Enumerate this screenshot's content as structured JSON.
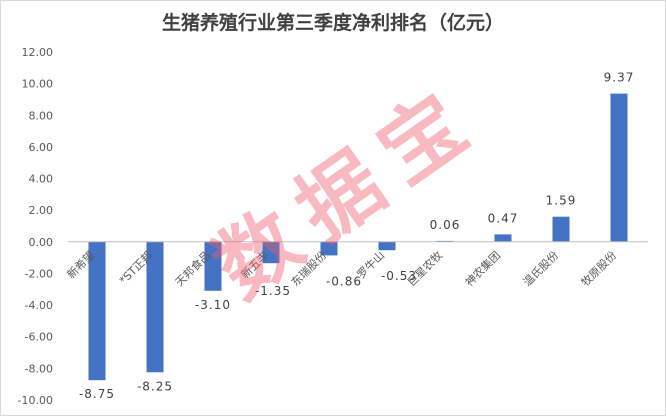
{
  "chart_data": {
    "type": "bar",
    "title": "生猪养殖行业第三季度净利排名（亿元）",
    "categories": [
      "新希望",
      "*ST正邦",
      "天邦食品",
      "新五丰",
      "东瑞股份",
      "罗牛山",
      "巨星农牧",
      "神农集团",
      "温氏股份",
      "牧原股份"
    ],
    "values": [
      -8.75,
      -8.25,
      -3.1,
      -1.35,
      -0.86,
      -0.53,
      0.06,
      0.47,
      1.59,
      9.37
    ],
    "ylim": [
      -10,
      12
    ],
    "y_ticks": [
      "12.00",
      "10.00",
      "8.00",
      "6.00",
      "4.00",
      "2.00",
      "0.00",
      "-2.00",
      "-4.00",
      "-6.00",
      "-8.00",
      "-10.00"
    ],
    "data_labels": true,
    "grid": false,
    "legend": false,
    "bar_color": "#4472C4"
  },
  "watermark": {
    "text": "数据宝",
    "color": "#EE5A6A"
  }
}
